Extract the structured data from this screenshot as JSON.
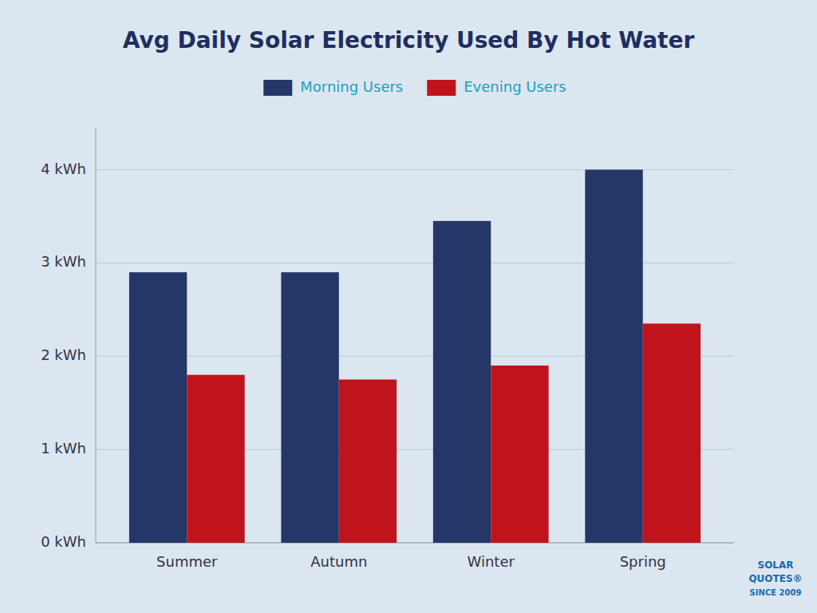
{
  "chart_data": {
    "type": "bar",
    "title": "Avg Daily Solar Electricity Used By Hot Water",
    "categories": [
      "Summer",
      "Autumn",
      "Winter",
      "Spring"
    ],
    "series": [
      {
        "name": "Morning Users",
        "color": "#253668",
        "values": [
          2.9,
          2.9,
          3.45,
          4.0
        ]
      },
      {
        "name": "Evening Users",
        "color": "#c0141c",
        "values": [
          1.8,
          1.75,
          1.9,
          2.35
        ]
      }
    ],
    "ylim": [
      0,
      4.45
    ],
    "yticks": [
      {
        "value": 0,
        "label": "0 kWh"
      },
      {
        "value": 1,
        "label": "1 kWh"
      },
      {
        "value": 2,
        "label": "2 kWh"
      },
      {
        "value": 3,
        "label": "3 kWh"
      },
      {
        "value": 4,
        "label": "4 kWh"
      }
    ],
    "grid": true,
    "legend": "top",
    "annotations": [
      "SOLAR",
      "QUOTES®",
      "SINCE 2009"
    ]
  }
}
